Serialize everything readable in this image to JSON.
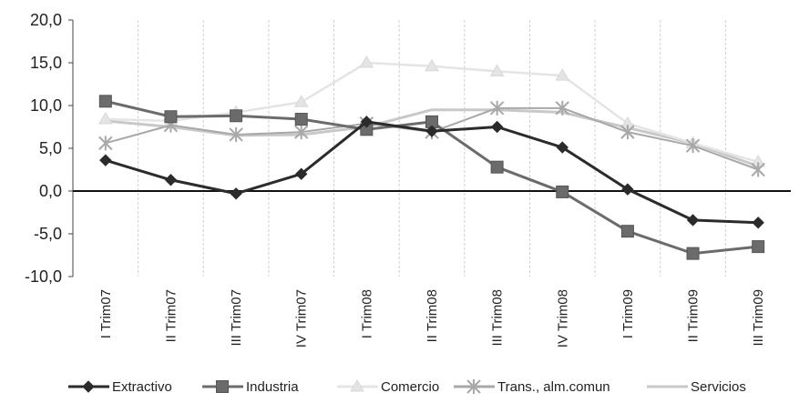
{
  "chart_data": {
    "type": "line",
    "categories": [
      "I Trim07",
      "II Trim07",
      "III Trim07",
      "IV Trim07",
      "I Trim08",
      "II Trim08",
      "III Trim08",
      "IV Trim08",
      "I Trim09",
      "II Trim09",
      "III Trim09"
    ],
    "ylim": [
      -10,
      20
    ],
    "yticks": [
      "20,0",
      "15,0",
      "10,0",
      "5,0",
      "0,0",
      "-5,0",
      "-10,0"
    ],
    "grid": "vertical",
    "legend_position": "bottom",
    "series": [
      {
        "name": "Extractivo",
        "color": "#2b2b2b",
        "marker": "diamond",
        "values": [
          3.6,
          1.3,
          -0.3,
          2.0,
          8.1,
          7.0,
          7.5,
          5.1,
          0.2,
          -3.4,
          -3.7
        ]
      },
      {
        "name": "Industria",
        "color": "#6b6b6b",
        "marker": "square",
        "values": [
          10.5,
          8.7,
          8.8,
          8.4,
          7.2,
          8.1,
          2.8,
          -0.1,
          -4.7,
          -7.3,
          -6.5
        ]
      },
      {
        "name": "Comercio",
        "color": "#e4e4e4",
        "marker": "triangle",
        "values": [
          8.4,
          8.2,
          9.2,
          10.4,
          15.0,
          14.6,
          14.0,
          13.5,
          7.9,
          5.6,
          3.4
        ]
      },
      {
        "name": "Trans., alm.comun",
        "color": "#a8a8a8",
        "marker": "star",
        "values": [
          5.6,
          7.7,
          6.6,
          6.9,
          7.9,
          6.9,
          9.7,
          9.7,
          6.9,
          5.3,
          2.5
        ]
      },
      {
        "name": "Servicios",
        "color": "#c8c8c8",
        "marker": "none",
        "values": [
          8.2,
          7.5,
          6.5,
          6.6,
          7.5,
          9.5,
          9.5,
          9.2,
          7.4,
          5.6,
          2.9
        ]
      }
    ]
  }
}
